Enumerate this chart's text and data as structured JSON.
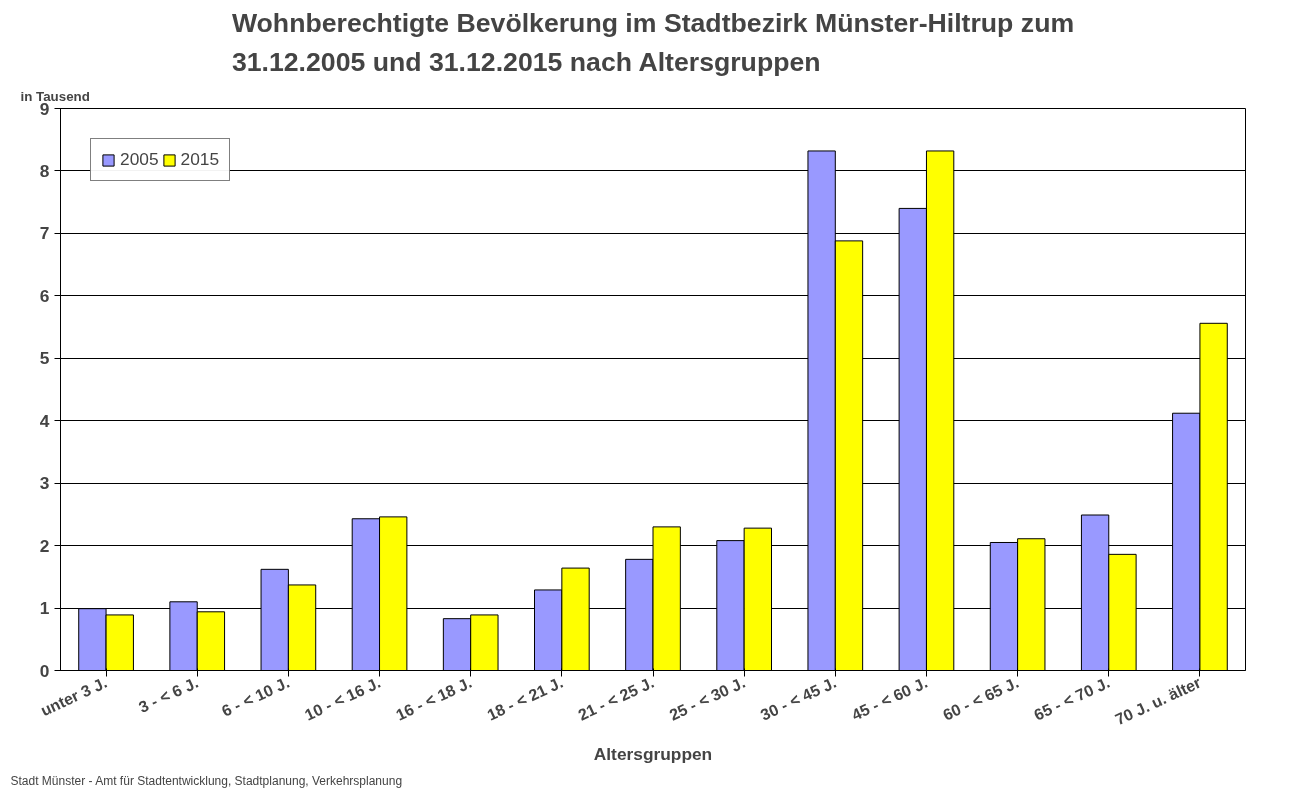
{
  "chart_data": {
    "type": "bar",
    "title": "Wohnberechtigte Bevölkerung im Stadtbezirk Münster-Hiltrup zum\n31.12.2005 und 31.12.2015 nach Altersgruppen",
    "ylabel": "in Tausend",
    "xlabel": "Altersgruppen",
    "annotations": [
      "Stadt Münster - Amt für Stadtentwicklung, Stadtplanung, Verkehrsplanung"
    ],
    "categories": [
      "unter 3 J.",
      "3 - < 6 J.",
      "6 - < 10 J.",
      "10 - < 16 J.",
      "16 - < 18 J.",
      "18 - < 21 J.",
      "21 - < 25 J.",
      "25 - < 30 J.",
      "30 - < 45 J.",
      "45 - < 60 J.",
      "60 - < 65 J.",
      "65 - < 70 J.",
      "70 J. u. älter"
    ],
    "series": [
      {
        "name": "2005",
        "color": "#9999ff",
        "values": [
          0.99,
          1.1,
          1.62,
          2.43,
          0.83,
          1.29,
          1.78,
          2.08,
          8.32,
          7.4,
          2.05,
          2.49,
          4.12
        ]
      },
      {
        "name": "2015",
        "color": "#ffff00",
        "values": [
          0.89,
          0.94,
          1.37,
          2.46,
          0.89,
          1.64,
          2.3,
          2.28,
          6.88,
          8.32,
          2.11,
          1.86,
          5.56
        ]
      }
    ],
    "ylim": [
      0,
      9
    ],
    "yticks": [
      0,
      1,
      2,
      3,
      4,
      5,
      6,
      7,
      8,
      9
    ],
    "grid": "y",
    "legend": "top left"
  }
}
